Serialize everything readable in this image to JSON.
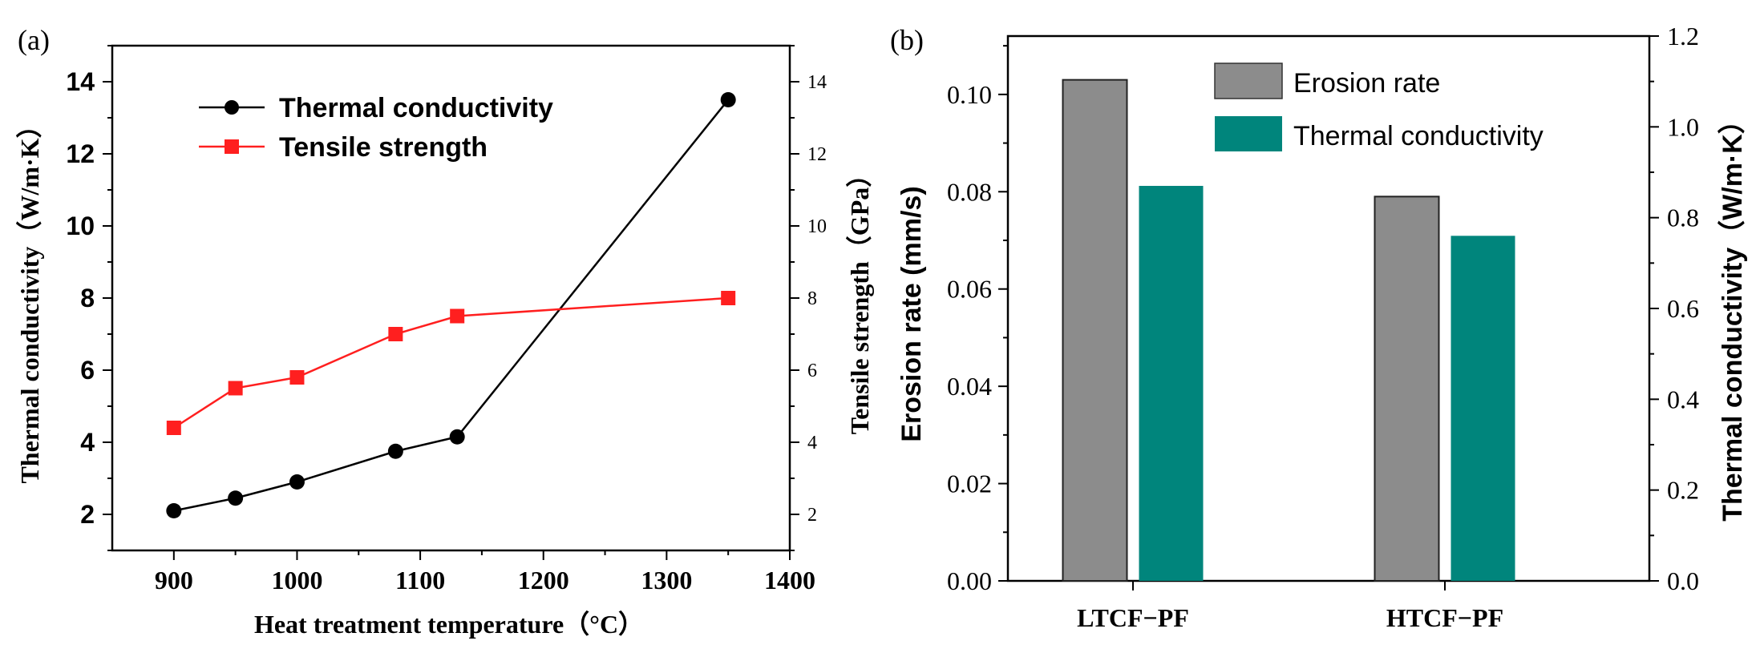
{
  "panels": {
    "a_label": "(a)",
    "b_label": "(b)"
  },
  "colors": {
    "black_series": "#000000",
    "red_series": "#ff1f1f",
    "gray_bar": "#8c8c8c",
    "teal_bar": "#00857c",
    "axis": "#000000"
  },
  "chart_data": [
    {
      "type": "line",
      "title": "",
      "xlabel": "Heat treatment temperature（°C）",
      "ylabel": "Thermal conductivity（W/m·K）",
      "y2label": "Tensile strength（GPa）",
      "xlim": [
        850,
        1400
      ],
      "ylim": [
        1,
        15
      ],
      "y2lim": [
        1,
        15
      ],
      "xticks": [
        "900",
        "1000",
        "1100",
        "1200",
        "1300",
        "1400"
      ],
      "xtick_values": [
        900,
        1000,
        1100,
        1200,
        1300,
        1400
      ],
      "yticks": [
        "2",
        "4",
        "6",
        "8",
        "10",
        "12",
        "14"
      ],
      "ytick_values": [
        2,
        4,
        6,
        8,
        10,
        12,
        14
      ],
      "y2ticks": [
        "2",
        "4",
        "6",
        "8",
        "10",
        "12",
        "14"
      ],
      "y2tick_values": [
        2,
        4,
        6,
        8,
        10,
        12,
        14
      ],
      "legend_position": "top-left",
      "series": [
        {
          "name": "Thermal conductivity",
          "marker": "circle",
          "axis": "left",
          "x": [
            900,
            950,
            1000,
            1080,
            1130,
            1350
          ],
          "values": [
            2.1,
            2.45,
            2.9,
            3.75,
            4.15,
            13.5
          ]
        },
        {
          "name": "Tensile strength",
          "marker": "square",
          "axis": "right",
          "x": [
            900,
            950,
            1000,
            1080,
            1130,
            1350
          ],
          "values": [
            4.4,
            5.5,
            5.8,
            7.0,
            7.5,
            8.0
          ]
        }
      ]
    },
    {
      "type": "bar",
      "title": "",
      "xlabel": "",
      "ylabel": "Erosion rate (mm/s)",
      "y2label": "Thermal conductivity（W/m·K）",
      "categories": [
        "LTCF−PF",
        "HTCF−PF"
      ],
      "ylim": [
        0,
        0.112
      ],
      "y2lim": [
        0,
        1.2
      ],
      "yticks": [
        "0.00",
        "0.02",
        "0.04",
        "0.06",
        "0.08",
        "0.10"
      ],
      "ytick_values": [
        0,
        0.02,
        0.04,
        0.06,
        0.08,
        0.1
      ],
      "y2ticks": [
        "0.0",
        "0.2",
        "0.4",
        "0.6",
        "0.8",
        "1.0",
        "1.2"
      ],
      "y2tick_values": [
        0,
        0.2,
        0.4,
        0.6,
        0.8,
        1.0,
        1.2
      ],
      "legend_position": "top-center",
      "series": [
        {
          "name": "Erosion rate",
          "axis": "left",
          "values": [
            0.103,
            0.079
          ]
        },
        {
          "name": "Thermal conductivity",
          "axis": "right",
          "values": [
            0.87,
            0.76
          ]
        }
      ]
    }
  ]
}
